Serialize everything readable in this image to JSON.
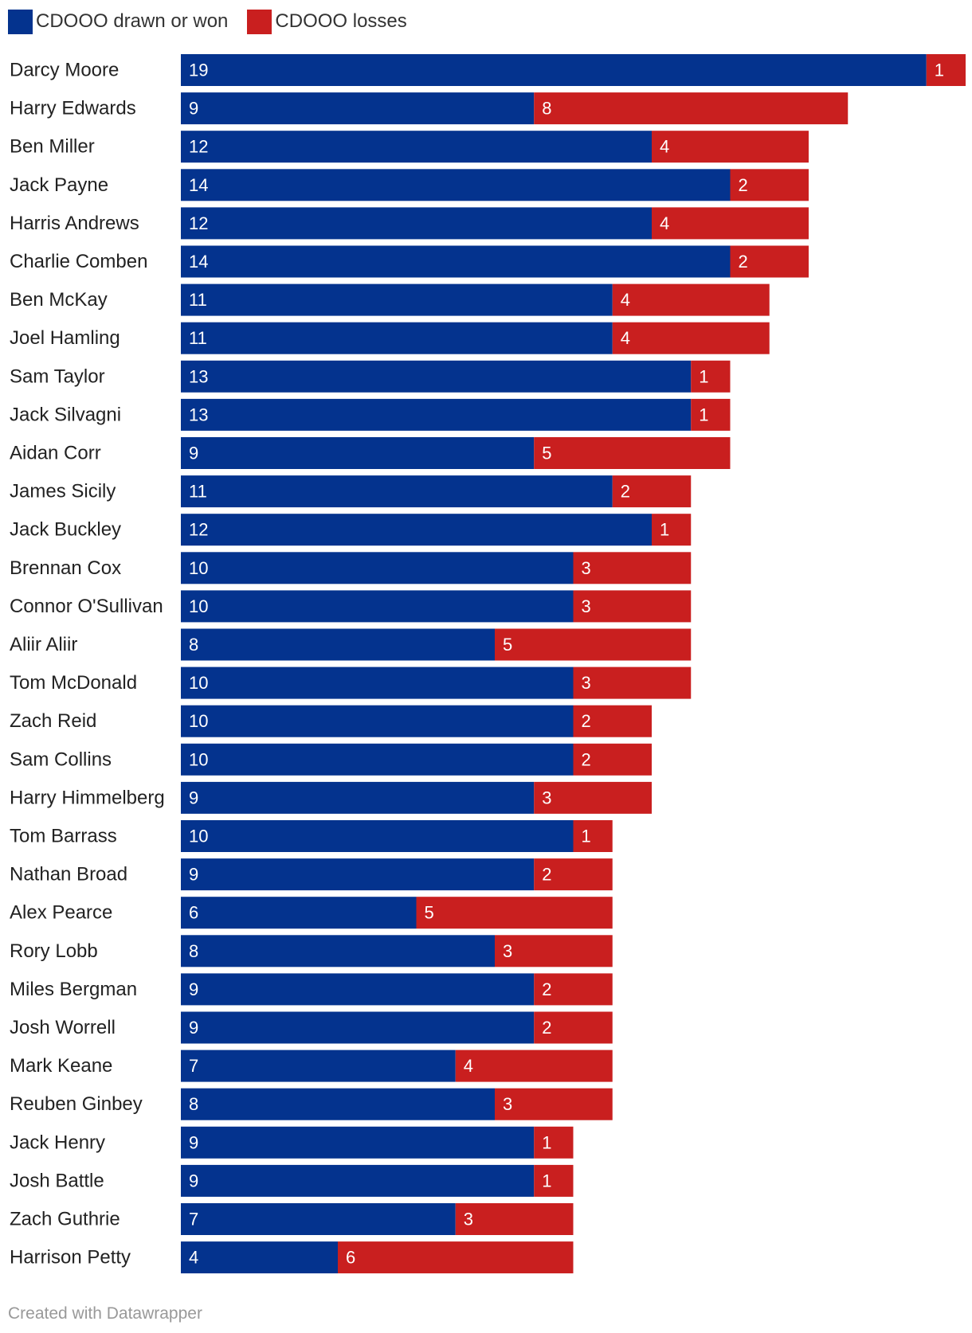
{
  "chart_data": {
    "type": "bar",
    "orientation": "horizontal",
    "stacked": true,
    "categories": [
      "Darcy Moore",
      "Harry Edwards",
      "Ben Miller",
      "Jack Payne",
      "Harris Andrews",
      "Charlie Comben",
      "Ben McKay",
      "Joel Hamling",
      "Sam Taylor",
      "Jack Silvagni",
      "Aidan Corr",
      "James Sicily",
      "Jack Buckley",
      "Brennan Cox",
      "Connor O'Sullivan",
      "Aliir Aliir",
      "Tom McDonald",
      "Zach Reid",
      "Sam Collins",
      "Harry Himmelberg",
      "Tom Barrass",
      "Nathan Broad",
      "Alex Pearce",
      "Rory Lobb",
      "Miles Bergman",
      "Josh Worrell",
      "Mark Keane",
      "Reuben Ginbey",
      "Jack Henry",
      "Josh Battle",
      "Zach Guthrie",
      "Harrison Petty"
    ],
    "series": [
      {
        "name": "CDOOO drawn or won",
        "color": "#04338e",
        "values": [
          19,
          9,
          12,
          14,
          12,
          14,
          11,
          11,
          13,
          13,
          9,
          11,
          12,
          10,
          10,
          8,
          10,
          10,
          10,
          9,
          10,
          9,
          6,
          8,
          9,
          9,
          7,
          8,
          9,
          9,
          7,
          4
        ]
      },
      {
        "name": "CDOOO losses",
        "color": "#c91f1f",
        "values": [
          1,
          8,
          4,
          2,
          4,
          2,
          4,
          4,
          1,
          1,
          5,
          2,
          1,
          3,
          3,
          5,
          3,
          2,
          2,
          3,
          1,
          2,
          5,
          3,
          2,
          2,
          4,
          3,
          1,
          1,
          3,
          6
        ]
      }
    ],
    "title": "",
    "xlabel": "",
    "ylabel": "",
    "xlim": [
      0,
      20
    ],
    "legend": "top-left"
  },
  "footer": {
    "credit": "Created with Datawrapper"
  }
}
